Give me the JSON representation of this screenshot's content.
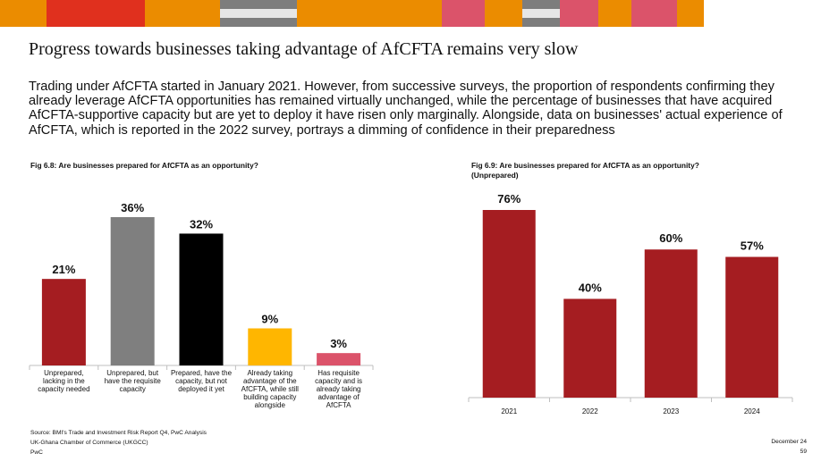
{
  "top_bar": {
    "colors": [
      "#eb8c00",
      "#e0301e",
      "#e0301e",
      "#eb8c00",
      "#eb8c00",
      "#7d7d7d",
      "#eb8c00",
      "#eb8c00",
      "#db536a",
      "#eb8c00",
      "#7d7d7d",
      "#db536a",
      "#eb8c00",
      "#db536a",
      "#eb8c00"
    ]
  },
  "title": "Progress towards businesses taking advantage of AfCFTA remains very slow",
  "intro": "Trading under AfCFTA started in January 2021. However, from successive surveys, the proportion of respondents confirming they already leverage AfCFTA opportunities has remained virtually unchanged, while the percentage of businesses that have acquired AfCFTA-supportive capacity but are yet to deploy it have risen only marginally. Alongside, data on businesses' actual experience of AfCFTA, which is reported in the 2022 survey, portrays a dimming of confidence in their preparedness",
  "chart_data": [
    {
      "type": "bar",
      "title": "Fig 6.8: Are businesses prepared for AfCFTA as an opportunity?",
      "categories": [
        [
          "Unprepared,",
          "lacking in the",
          "capacity needed"
        ],
        [
          "Unprepared, but",
          "have the requisite",
          "capacity"
        ],
        [
          "Prepared, have the",
          "capacity, but not",
          "deployed it yet"
        ],
        [
          "Already taking",
          "advantage of the",
          "AfCFTA, while still",
          "building capacity",
          "alongside"
        ],
        [
          "Has requisite",
          "capacity and is",
          "already taking",
          "advantage of",
          "AfCFTA"
        ]
      ],
      "values": [
        21,
        36,
        32,
        9,
        3
      ],
      "value_labels": [
        "21%",
        "36%",
        "32%",
        "9%",
        "3%"
      ],
      "colors": [
        "#a51d21",
        "#7f7f7f",
        "#000000",
        "#ffb600",
        "#db536a"
      ],
      "xlabel": "",
      "ylabel": "",
      "ylim": [
        0,
        36
      ]
    },
    {
      "type": "bar",
      "title": "Fig 6.9: Are businesses prepared for AfCFTA as an opportunity? (Unprepared)",
      "categories": [
        "2021",
        "2022",
        "2023",
        "2024"
      ],
      "values": [
        76,
        40,
        60,
        57
      ],
      "value_labels": [
        "76%",
        "40%",
        "60%",
        "57%"
      ],
      "colors": [
        "#a51d21",
        "#a51d21",
        "#a51d21",
        "#a51d21"
      ],
      "xlabel": "",
      "ylabel": "",
      "ylim": [
        0,
        76
      ]
    }
  ],
  "footer": {
    "source": "Source: BMI's Trade and Investment Risk Report Q4, PwC Analysis",
    "org": "UK-Ghana Chamber of Commerce (UKGCC)",
    "brand": "PwC",
    "date": "December 24",
    "page": "59"
  }
}
